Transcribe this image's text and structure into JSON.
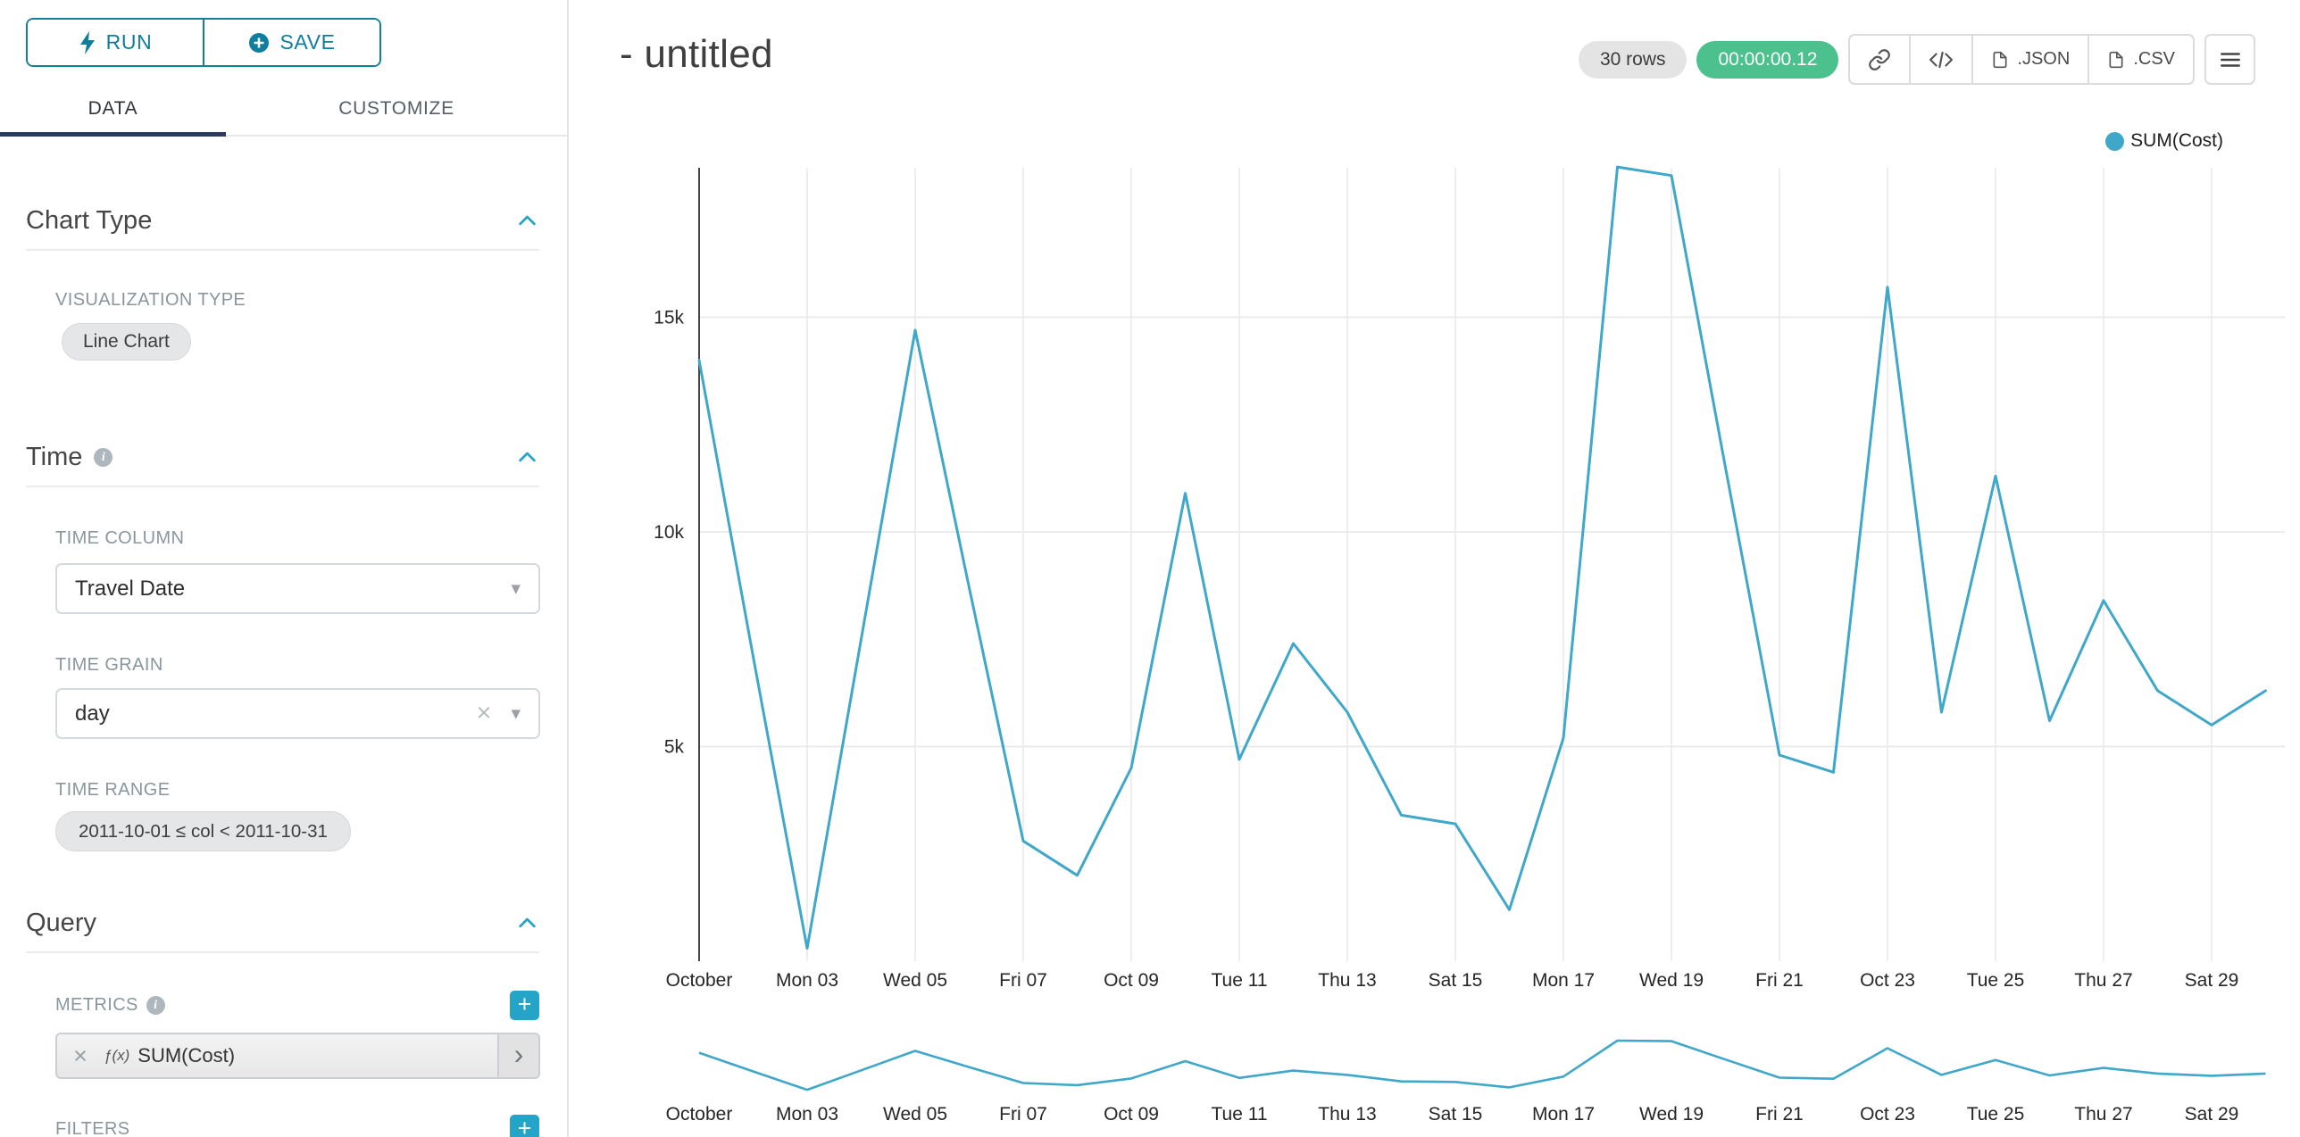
{
  "sidebar": {
    "run_label": "RUN",
    "save_label": "SAVE",
    "tabs": [
      {
        "label": "DATA",
        "active": true
      },
      {
        "label": "CUSTOMIZE",
        "active": false
      }
    ],
    "chart_type": {
      "title": "Chart Type",
      "viz_label": "VISUALIZATION TYPE",
      "viz_value": "Line Chart"
    },
    "time": {
      "title": "Time",
      "column_label": "TIME COLUMN",
      "column_value": "Travel Date",
      "grain_label": "TIME GRAIN",
      "grain_value": "day",
      "range_label": "TIME RANGE",
      "range_value": "2011-10-01 ≤ col < 2011-10-31"
    },
    "query": {
      "title": "Query",
      "metrics_label": "METRICS",
      "metric_fx": "ƒ(x)",
      "metric_value": "SUM(Cost)",
      "filters_label": "FILTERS"
    }
  },
  "header": {
    "title": "- untitled",
    "row_count": "30 rows",
    "query_time": "00:00:00.12",
    "export_json_label": ".JSON",
    "export_csv_label": ".CSV"
  },
  "legend": {
    "label": "SUM(Cost)"
  },
  "colors": {
    "accent": "#20a7c9",
    "run_save_blue": "#0f7e9e",
    "tab_underline": "#2b3a5e",
    "success_green": "#4cc08d",
    "series_teal": "#3fa7c9"
  },
  "chart_data": {
    "type": "line",
    "title": "- untitled",
    "legend_position": "top-right",
    "grid": true,
    "has_range_brush": true,
    "x": [
      "2011-10-01",
      "2011-10-02",
      "2011-10-03",
      "2011-10-04",
      "2011-10-05",
      "2011-10-06",
      "2011-10-07",
      "2011-10-08",
      "2011-10-09",
      "2011-10-10",
      "2011-10-11",
      "2011-10-12",
      "2011-10-13",
      "2011-10-14",
      "2011-10-15",
      "2011-10-16",
      "2011-10-17",
      "2011-10-18",
      "2011-10-19",
      "2011-10-20",
      "2011-10-21",
      "2011-10-22",
      "2011-10-23",
      "2011-10-24",
      "2011-10-25",
      "2011-10-26",
      "2011-10-27",
      "2011-10-28",
      "2011-10-29",
      "2011-10-30"
    ],
    "x_tick_labels": [
      "October",
      "Mon 03",
      "Wed 05",
      "Fri 07",
      "Oct 09",
      "Tue 11",
      "Thu 13",
      "Sat 15",
      "Mon 17",
      "Wed 19",
      "Fri 21",
      "Oct 23",
      "Tue 25",
      "Thu 27",
      "Sat 29"
    ],
    "x_tick_indices": [
      0,
      2,
      4,
      6,
      8,
      10,
      12,
      14,
      16,
      18,
      20,
      22,
      24,
      26,
      28
    ],
    "series": [
      {
        "name": "SUM(Cost)",
        "color": "#3fa7c9",
        "values": [
          14000,
          7100,
          300,
          7500,
          14700,
          8700,
          2800,
          2000,
          4500,
          10900,
          4700,
          7400,
          5800,
          3400,
          3200,
          1200,
          5200,
          18500,
          18300,
          11500,
          4800,
          4400,
          15700,
          5800,
          11300,
          5600,
          8400,
          6300,
          5500,
          6300
        ]
      }
    ],
    "yticks": [
      {
        "value": 5000,
        "label": "5k"
      },
      {
        "value": 10000,
        "label": "10k"
      },
      {
        "value": 15000,
        "label": "15k"
      }
    ],
    "ylim": [
      0,
      19000
    ],
    "xlabel": "",
    "ylabel": ""
  }
}
